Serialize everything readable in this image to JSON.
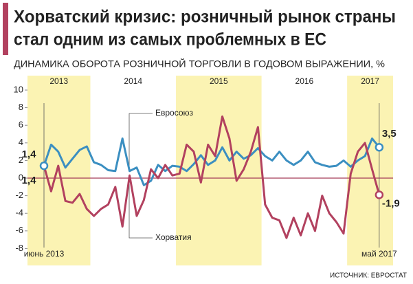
{
  "chart_data": {
    "type": "line",
    "title": [
      "Хорватский кризис: розничный рынок страны",
      "стал одним из самых проблемных в ЕС"
    ],
    "subtitle": "ДИНАМИКА ОБОРОТА РОЗНИЧНОЙ ТОРГОВЛИ В ГОДОВОМ ВЫРАЖЕНИИ, %",
    "source": "ИСТОЧНИК: ЕВРОСТАТ",
    "years": [
      {
        "label": "2013",
        "highlight": true
      },
      {
        "label": "2014",
        "highlight": false
      },
      {
        "label": "2015",
        "highlight": true
      },
      {
        "label": "2016",
        "highlight": false
      },
      {
        "label": "2017",
        "highlight": true
      }
    ],
    "categories": [
      "июнь 2013",
      null,
      null,
      null,
      null,
      null,
      null,
      null,
      null,
      null,
      null,
      null,
      null,
      null,
      null,
      null,
      null,
      null,
      null,
      null,
      null,
      null,
      null,
      null,
      null,
      null,
      null,
      null,
      null,
      null,
      null,
      null,
      null,
      null,
      null,
      null,
      null,
      null,
      null,
      null,
      null,
      null,
      null,
      null,
      null,
      null,
      null,
      "май 2017"
    ],
    "series": [
      {
        "name": "Евросоюз",
        "color": "#3b8fc1",
        "start_label": "1,4",
        "end_label": "3,5",
        "values": [
          1.4,
          3.8,
          3.0,
          1.2,
          2.2,
          3.2,
          3.6,
          1.8,
          1.5,
          0.9,
          0.8,
          4.5,
          0.8,
          1.2,
          -0.8,
          -0.3,
          1.5,
          0.8,
          1.4,
          1.3,
          0.8,
          1.6,
          2.6,
          1.5,
          2.0,
          3.5,
          2.0,
          3.0,
          2.2,
          2.6,
          3.4,
          2.5,
          2.0,
          3.0,
          2.0,
          1.5,
          2.0,
          3.0,
          1.8,
          1.5,
          1.3,
          1.4,
          2.0,
          1.3,
          2.0,
          2.5,
          4.5,
          3.5
        ]
      },
      {
        "name": "Хорватия",
        "color": "#b2415f",
        "start_label": "1,4",
        "end_label": "-1,9",
        "values": [
          1.4,
          -1.5,
          1.4,
          -2.6,
          -2.8,
          -1.8,
          -3.5,
          -4.3,
          -3.5,
          -3.0,
          -1.0,
          -5.5,
          0.3,
          -4.3,
          -2.5,
          1.0,
          0.0,
          1.5,
          0.3,
          0.5,
          3.8,
          3.0,
          -0.5,
          3.8,
          2.5,
          7.0,
          4.5,
          -0.3,
          1.0,
          3.0,
          5.8,
          -3.0,
          -4.5,
          -4.8,
          -6.8,
          -4.5,
          -6.5,
          -4.0,
          -6.0,
          -2.0,
          -4.0,
          -5.0,
          -6.3,
          0.5,
          3.0,
          4.0,
          1.0,
          -1.9
        ]
      }
    ],
    "ylim": [
      -10,
      10
    ],
    "yticks": [
      10,
      8,
      6,
      4,
      2,
      0,
      -2,
      -4,
      -6,
      -8
    ]
  }
}
